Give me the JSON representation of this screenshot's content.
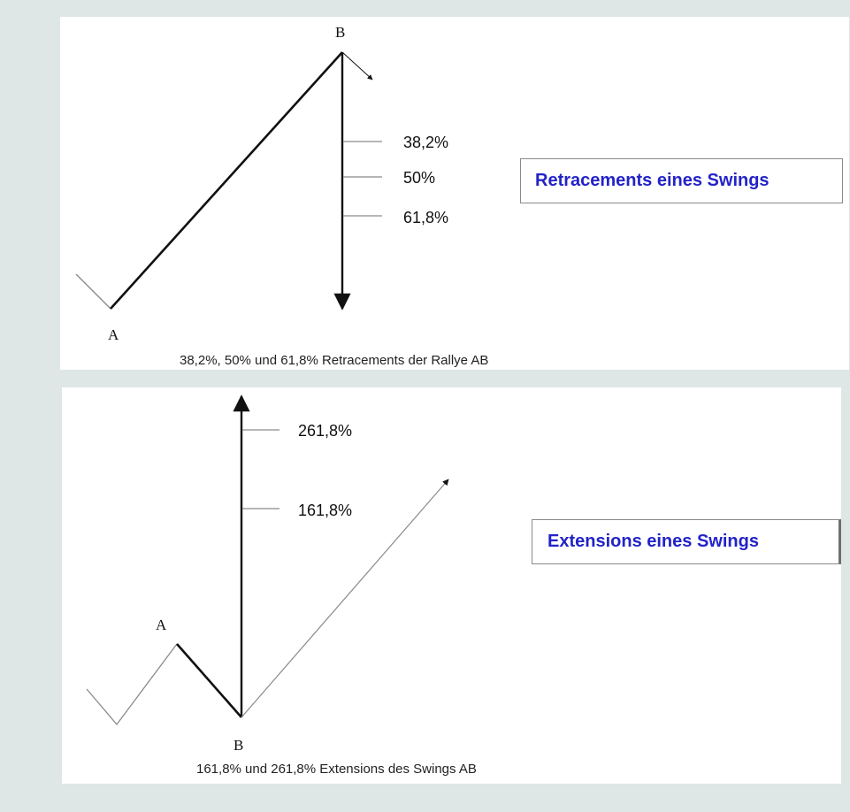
{
  "retracement": {
    "point_a": "A",
    "point_b": "B",
    "levels": [
      "38,2%",
      "50%",
      "61,8%"
    ],
    "title": "Retracements eines Swings",
    "caption": "38,2%, 50% und 61,8% Retracements der Rallye AB"
  },
  "extension": {
    "point_a": "A",
    "point_b": "B",
    "levels": [
      "261,8%",
      "161,8%"
    ],
    "title": "Extensions eines Swings",
    "caption": "161,8% und 261,8% Extensions des Swings AB"
  },
  "colors": {
    "background": "#dfe6e6",
    "panel": "#ffffff",
    "title_text": "#2323c8"
  }
}
